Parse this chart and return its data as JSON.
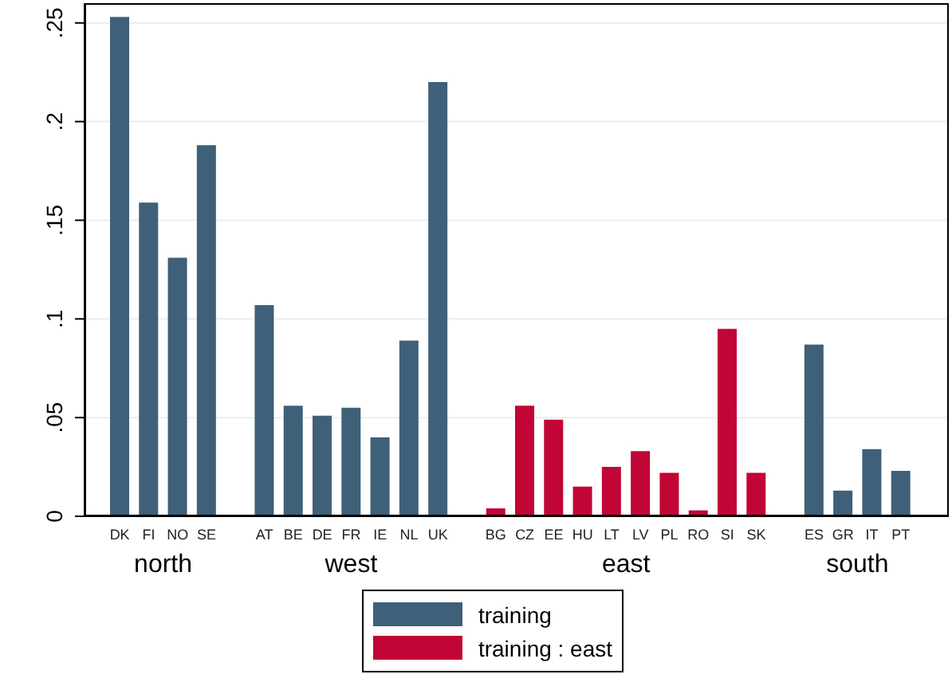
{
  "chart_data": {
    "type": "bar",
    "stacked": true,
    "categories": [
      "DK",
      "FI",
      "NO",
      "SE",
      null,
      "AT",
      "BE",
      "DE",
      "FR",
      "IE",
      "NL",
      "UK",
      null,
      "BG",
      "CZ",
      "EE",
      "HU",
      "LT",
      "LV",
      "PL",
      "RO",
      "SI",
      "SK",
      null,
      "ES",
      "GR",
      "IT",
      "PT"
    ],
    "series": [
      {
        "name": "training",
        "color": "#3e6079",
        "values": [
          0.253,
          0.159,
          0.131,
          0.188,
          null,
          0.107,
          0.056,
          0.051,
          0.055,
          0.04,
          0.089,
          0.22,
          null,
          null,
          null,
          null,
          null,
          null,
          null,
          null,
          null,
          null,
          null,
          null,
          0.087,
          0.013,
          0.034,
          0.023
        ]
      },
      {
        "name": "training : east",
        "color": "#c10534",
        "values": [
          null,
          null,
          null,
          null,
          null,
          null,
          null,
          null,
          null,
          null,
          null,
          null,
          null,
          0.004,
          0.056,
          0.049,
          0.015,
          0.025,
          0.033,
          0.022,
          0.003,
          0.095,
          0.022,
          null,
          null,
          null,
          null,
          null
        ]
      }
    ],
    "annotations": [
      "north",
      "west",
      "east",
      "south"
    ],
    "ylim": [
      0,
      0.26
    ],
    "yticks": [
      0,
      {
        "value": 0.05,
        "label": ".05"
      },
      {
        "value": 0.1,
        "label": ".1"
      },
      {
        "value": 0.15,
        "label": ".15"
      },
      {
        "value": 0.2,
        "label": ".2"
      },
      {
        "value": 0.25,
        "label": ".25"
      }
    ],
    "grid": "y",
    "legend": "bottom"
  }
}
